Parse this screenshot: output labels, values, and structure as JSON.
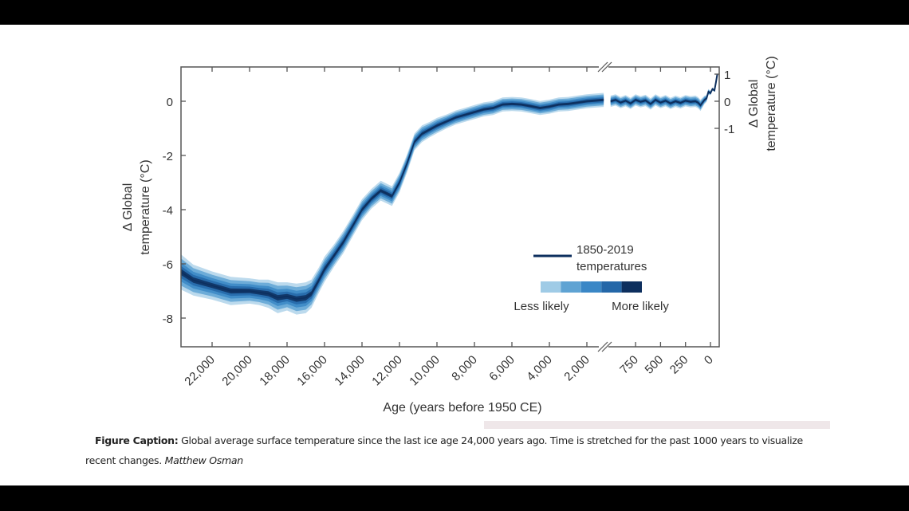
{
  "caption": {
    "label": "Figure Caption:",
    "text": "Global average surface temperature since the last ice age 24,000 years ago. Time is stretched for the past 1000 years to visualize recent changes.",
    "credit": "Matthew Osman"
  },
  "chart_data": {
    "type": "area",
    "title": "",
    "xlabel": "Age (years before 1950 CE)",
    "ylabel_left": "Δ Global temperature (°C)",
    "ylabel_right": "Δ Global temperature (°C)",
    "xlim": [
      23660,
      -69
    ],
    "x_break": [
      2000,
      1000
    ],
    "ylim": [
      -9,
      1.2
    ],
    "grid": false,
    "x_ticks": [
      {
        "value": 22000,
        "label": "22,000"
      },
      {
        "value": 20000,
        "label": "20,000"
      },
      {
        "value": 18000,
        "label": "18,000"
      },
      {
        "value": 16000,
        "label": "16,000"
      },
      {
        "value": 14000,
        "label": "14,000"
      },
      {
        "value": 12000,
        "label": "12,000"
      },
      {
        "value": 10000,
        "label": "10,000"
      },
      {
        "value": 8000,
        "label": "8,000"
      },
      {
        "value": 6000,
        "label": "6,000"
      },
      {
        "value": 4000,
        "label": "4,000"
      },
      {
        "value": 2000,
        "label": "2,000"
      },
      {
        "value": 750,
        "label": "750"
      },
      {
        "value": 500,
        "label": "500"
      },
      {
        "value": 250,
        "label": "250"
      },
      {
        "value": 0,
        "label": "0"
      }
    ],
    "y_ticks_left": [
      "0",
      "-2",
      "-4",
      "-6",
      "-8"
    ],
    "y_ticks_right": [
      "1",
      "0",
      "-1"
    ],
    "legend": {
      "placement": "lower-right",
      "line_label_1": "1850-2019",
      "line_label_2": "temperatures",
      "less_label": "Less likely",
      "more_label": "More likely",
      "shades": [
        "#9fcbe6",
        "#5fa3d3",
        "#3a87c6",
        "#2467a8",
        "#0d2f5e"
      ]
    },
    "colors": {
      "line": "#0d2f5e",
      "axis": "#555555"
    },
    "series": [
      {
        "segment": "pre-1100 BP",
        "age": [
          23660,
          23000,
          22000,
          21000,
          20000,
          19500,
          19000,
          18500,
          18000,
          17500,
          17000,
          16700,
          16300,
          16000,
          15500,
          15000,
          14500,
          14000,
          13500,
          13000,
          12700,
          12400,
          12000,
          11600,
          11200,
          10800,
          10400,
          10000,
          9500,
          9000,
          8500,
          8000,
          7500,
          7000,
          6500,
          6000,
          5500,
          5000,
          4500,
          4000,
          3500,
          3000,
          2500,
          2000,
          1100
        ],
        "temp": [
          -6.3,
          -6.6,
          -6.8,
          -7.0,
          -7.0,
          -7.05,
          -7.1,
          -7.25,
          -7.2,
          -7.3,
          -7.25,
          -7.1,
          -6.6,
          -6.2,
          -5.7,
          -5.2,
          -4.6,
          -4.0,
          -3.6,
          -3.3,
          -3.4,
          -3.5,
          -3.0,
          -2.3,
          -1.5,
          -1.2,
          -1.05,
          -0.9,
          -0.75,
          -0.6,
          -0.5,
          -0.4,
          -0.3,
          -0.25,
          -0.12,
          -0.1,
          -0.12,
          -0.18,
          -0.25,
          -0.2,
          -0.12,
          -0.1,
          -0.05,
          0.0,
          0.05
        ],
        "sigma": [
          0.25,
          0.22,
          0.2,
          0.2,
          0.18,
          0.18,
          0.2,
          0.22,
          0.2,
          0.22,
          0.22,
          0.2,
          0.18,
          0.18,
          0.16,
          0.16,
          0.15,
          0.15,
          0.14,
          0.14,
          0.14,
          0.14,
          0.14,
          0.13,
          0.12,
          0.12,
          0.11,
          0.11,
          0.1,
          0.1,
          0.1,
          0.1,
          0.1,
          0.1,
          0.1,
          0.1,
          0.1,
          0.1,
          0.1,
          0.1,
          0.1,
          0.1,
          0.1,
          0.1,
          0.1
        ]
      },
      {
        "segment": "last 1000 years",
        "age": [
          1000,
          950,
          900,
          850,
          800,
          750,
          700,
          650,
          600,
          550,
          500,
          450,
          400,
          350,
          300,
          250,
          200,
          150,
          125,
          100,
          80,
          60,
          40,
          20,
          0,
          -20,
          -40,
          -55,
          -69
        ],
        "temp": [
          0.0,
          0.05,
          -0.05,
          0.02,
          -0.08,
          0.05,
          -0.02,
          0.03,
          -0.1,
          0.05,
          -0.05,
          0.02,
          -0.08,
          0.0,
          -0.06,
          0.02,
          -0.02,
          0.0,
          -0.05,
          -0.15,
          -0.05,
          0.05,
          0.1,
          0.35,
          0.3,
          0.45,
          0.4,
          0.7,
          1.0
        ],
        "sigma": [
          0.08,
          0.08,
          0.08,
          0.08,
          0.08,
          0.08,
          0.08,
          0.08,
          0.08,
          0.08,
          0.08,
          0.08,
          0.08,
          0.08,
          0.08,
          0.08,
          0.08,
          0.08,
          0.08,
          0.08,
          0.07,
          0.06,
          0.05,
          0.04,
          0.03,
          0.02,
          0.02,
          0.02,
          0.02
        ]
      }
    ],
    "instrumental_name": "1850-2019 temperatures"
  }
}
